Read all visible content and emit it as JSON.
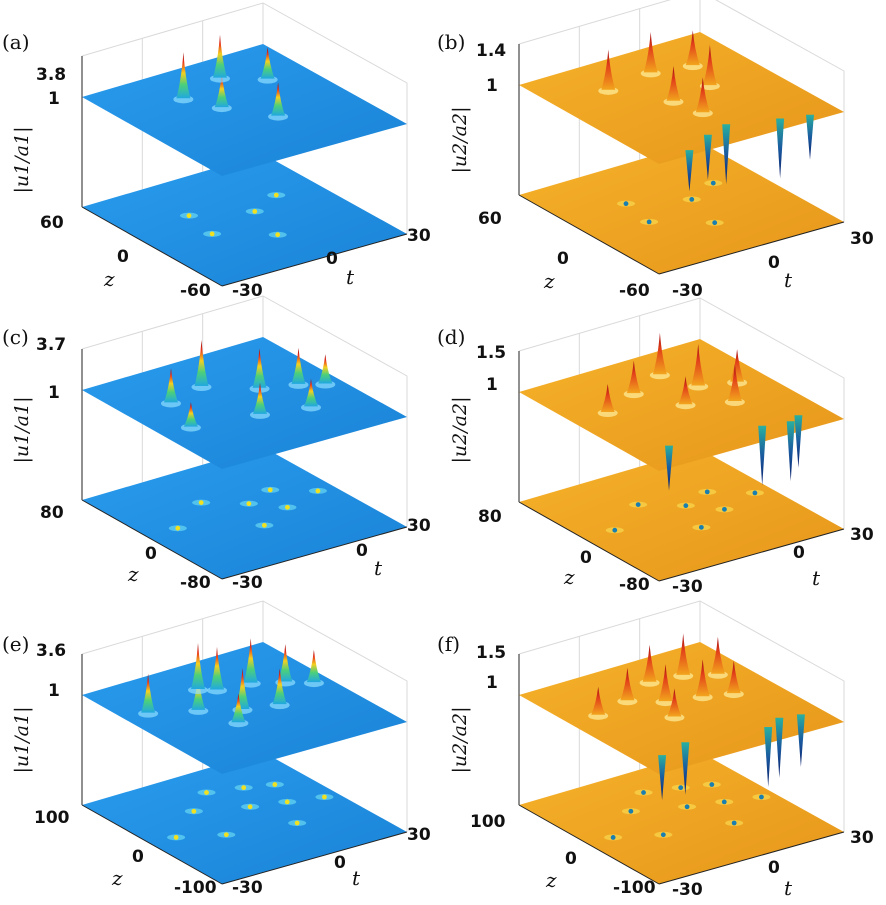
{
  "colors": {
    "blue_plane": "#1e8fe2",
    "blue_plane_dark": "#1a7fd0",
    "orange_plane": "#f2a51c",
    "orange_plane_dark": "#e08f14",
    "peak_red": "#c0141a",
    "dip_navy": "#0b2a7a"
  },
  "chart_data": [
    {
      "panel": "(a)",
      "type": "surface",
      "component": "|u1/a1|",
      "colormap": "jet-blue",
      "z_ticks": [
        "3.8",
        "1"
      ],
      "ylabel": "|u1/a1|",
      "zmax": 3.8,
      "base": 1,
      "y_ticks": [
        "60",
        "0",
        "-60"
      ],
      "x_ticks": [
        "-30",
        "0",
        "30"
      ],
      "ylabel_axis": "z",
      "xlabel": "t",
      "peaks": [
        {
          "t": -8,
          "z": 30,
          "h": 3.8
        },
        {
          "t": -3,
          "z": 10,
          "h": 3.0
        },
        {
          "t": 8,
          "z": 40,
          "h": 3.6
        },
        {
          "t": 18,
          "z": 25,
          "h": 2.9
        },
        {
          "t": 6,
          "z": -15,
          "h": 3.0
        }
      ],
      "dips": [],
      "defects": [
        {
          "t": -10,
          "z": 20
        },
        {
          "t": -12,
          "z": -5
        },
        {
          "t": 6,
          "z": 5
        },
        {
          "t": 17,
          "z": 15
        },
        {
          "t": 2,
          "z": -25
        }
      ]
    },
    {
      "panel": "(b)",
      "type": "surface",
      "component": "|u2/a2|",
      "colormap": "jet-orange",
      "z_ticks": [
        "1.4",
        "1"
      ],
      "ylabel": "|u2/a2|",
      "zmax": 1.4,
      "base": 1,
      "y_ticks": [
        "60",
        "0",
        "-60"
      ],
      "x_ticks": [
        "-30",
        "0",
        "30"
      ],
      "ylabel_axis": "z",
      "xlabel": "t",
      "peaks": [
        {
          "t": -12,
          "z": 30,
          "h": 1.35
        },
        {
          "t": 4,
          "z": 35,
          "h": 1.35
        },
        {
          "t": 16,
          "z": 30,
          "h": 1.3
        },
        {
          "t": -2,
          "z": 0,
          "h": 1.3
        },
        {
          "t": 12,
          "z": 5,
          "h": 1.35
        },
        {
          "t": 0,
          "z": -20,
          "h": 1.3
        }
      ],
      "dips": [
        {
          "t": -18,
          "z": -55,
          "d": 0.55
        },
        {
          "t": -8,
          "z": -45,
          "d": 0.6
        },
        {
          "t": 0,
          "z": -40,
          "d": 0.8
        },
        {
          "t": 14,
          "z": -50,
          "d": 0.8
        },
        {
          "t": 22,
          "z": -55,
          "d": 0.6
        }
      ],
      "defects": [
        {
          "t": -10,
          "z": 20
        },
        {
          "t": -12,
          "z": -5
        },
        {
          "t": 6,
          "z": 5
        },
        {
          "t": 17,
          "z": 15
        },
        {
          "t": 2,
          "z": -25
        }
      ]
    },
    {
      "panel": "(c)",
      "type": "surface",
      "component": "|u1/a1|",
      "colormap": "jet-blue",
      "z_ticks": [
        "3.7",
        "1"
      ],
      "ylabel": "|u1/a1|",
      "zmax": 3.7,
      "base": 1,
      "y_ticks": [
        "80",
        "0",
        "-80"
      ],
      "x_ticks": [
        "-30",
        "0",
        "30"
      ],
      "ylabel_axis": "z",
      "xlabel": "t",
      "peaks": [
        {
          "t": -15,
          "z": 30,
          "h": 3.0
        },
        {
          "t": -20,
          "z": -10,
          "h": 2.4
        },
        {
          "t": -2,
          "z": 40,
          "h": 3.7
        },
        {
          "t": 10,
          "z": 15,
          "h": 3.3
        },
        {
          "t": 20,
          "z": 5,
          "h": 3.1
        },
        {
          "t": 26,
          "z": -5,
          "h": 2.7
        },
        {
          "t": 0,
          "z": -20,
          "h": 2.8
        },
        {
          "t": 14,
          "z": -30,
          "h": 2.6
        }
      ],
      "dips": [],
      "defects": [
        {
          "t": -20,
          "z": 5
        },
        {
          "t": -5,
          "z": 30
        },
        {
          "t": 5,
          "z": 10
        },
        {
          "t": 15,
          "z": 20
        },
        {
          "t": 25,
          "z": 0
        },
        {
          "t": 0,
          "z": -25
        },
        {
          "t": 12,
          "z": -10
        }
      ]
    },
    {
      "panel": "(d)",
      "type": "surface",
      "component": "|u2/a2|",
      "colormap": "jet-orange",
      "z_ticks": [
        "1.5",
        "1"
      ],
      "ylabel": "|u2/a2|",
      "zmax": 1.5,
      "base": 1,
      "y_ticks": [
        "80",
        "0",
        "-80"
      ],
      "x_ticks": [
        "-30",
        "0",
        "30"
      ],
      "ylabel_axis": "z",
      "xlabel": "t",
      "peaks": [
        {
          "t": -18,
          "z": 20,
          "h": 1.3
        },
        {
          "t": -5,
          "z": 35,
          "h": 1.35
        },
        {
          "t": 8,
          "z": 50,
          "h": 1.45
        },
        {
          "t": 12,
          "z": 20,
          "h": 1.45
        },
        {
          "t": 22,
          "z": 10,
          "h": 1.35
        },
        {
          "t": 2,
          "z": 0,
          "h": 1.3
        },
        {
          "t": 14,
          "z": -15,
          "h": 1.4
        }
      ],
      "dips": [
        {
          "t": -18,
          "z": -50,
          "d": 0.6
        },
        {
          "t": 10,
          "z": -60,
          "d": 0.8
        },
        {
          "t": 18,
          "z": -65,
          "d": 0.8
        },
        {
          "t": 22,
          "z": -60,
          "d": 0.7
        }
      ],
      "defects": [
        {
          "t": -20,
          "z": 5
        },
        {
          "t": -5,
          "z": 30
        },
        {
          "t": 5,
          "z": 10
        },
        {
          "t": 15,
          "z": 20
        },
        {
          "t": 25,
          "z": 0
        },
        {
          "t": 0,
          "z": -25
        },
        {
          "t": 12,
          "z": -10
        }
      ]
    },
    {
      "panel": "(e)",
      "type": "surface",
      "component": "|u1/a1|",
      "colormap": "jet-blue",
      "z_ticks": [
        "3.6",
        "1"
      ],
      "ylabel": "|u1/a1|",
      "zmax": 3.6,
      "base": 1,
      "y_ticks": [
        "100",
        "0",
        "-100"
      ],
      "x_ticks": [
        "-30",
        "0",
        "30"
      ],
      "ylabel_axis": "z",
      "xlabel": "t",
      "peaks": [
        {
          "t": -22,
          "z": 40,
          "h": 3.2
        },
        {
          "t": -10,
          "z": 20,
          "h": 3.0
        },
        {
          "t": -2,
          "z": 55,
          "h": 3.6
        },
        {
          "t": 2,
          "z": 45,
          "h": 3.4
        },
        {
          "t": 12,
          "z": 40,
          "h": 3.5
        },
        {
          "t": 20,
          "z": 25,
          "h": 3.1
        },
        {
          "t": 26,
          "z": 10,
          "h": 2.8
        },
        {
          "t": 0,
          "z": 0,
          "h": 3.3
        },
        {
          "t": 10,
          "z": -10,
          "h": 3.0
        },
        {
          "t": -6,
          "z": -20,
          "h": 2.6
        }
      ],
      "dips": [],
      "defects": [
        {
          "t": -22,
          "z": 0
        },
        {
          "t": -8,
          "z": 35
        },
        {
          "t": 2,
          "z": 60
        },
        {
          "t": 12,
          "z": 50
        },
        {
          "t": 20,
          "z": 40
        },
        {
          "t": 6,
          "z": 15
        },
        {
          "t": 16,
          "z": 5
        },
        {
          "t": 26,
          "z": -5
        },
        {
          "t": -10,
          "z": -20
        },
        {
          "t": 10,
          "z": -35
        }
      ]
    },
    {
      "panel": "(f)",
      "type": "surface",
      "component": "|u2/a2|",
      "colormap": "jet-orange",
      "z_ticks": [
        "1.5",
        "1"
      ],
      "ylabel": "|u2/a2|",
      "zmax": 1.5,
      "base": 1,
      "y_ticks": [
        "100",
        "0",
        "-100"
      ],
      "x_ticks": [
        "-30",
        "0",
        "30"
      ],
      "ylabel_axis": "z",
      "xlabel": "t",
      "peaks": [
        {
          "t": -20,
          "z": 30,
          "h": 1.3
        },
        {
          "t": -8,
          "z": 40,
          "h": 1.35
        },
        {
          "t": 4,
          "z": 60,
          "h": 1.4
        },
        {
          "t": 14,
          "z": 55,
          "h": 1.45
        },
        {
          "t": 22,
          "z": 40,
          "h": 1.4
        },
        {
          "t": 0,
          "z": 20,
          "h": 1.4
        },
        {
          "t": 10,
          "z": 10,
          "h": 1.4
        },
        {
          "t": 18,
          "z": 0,
          "h": 1.35
        },
        {
          "t": -4,
          "z": -10,
          "h": 1.3
        }
      ],
      "dips": [
        {
          "t": -22,
          "z": -70,
          "d": 0.6
        },
        {
          "t": -12,
          "z": -60,
          "d": 0.7
        },
        {
          "t": 12,
          "z": -75,
          "d": 0.8
        },
        {
          "t": 18,
          "z": -65,
          "d": 0.8
        },
        {
          "t": 24,
          "z": -70,
          "d": 0.7
        }
      ],
      "defects": [
        {
          "t": -22,
          "z": 0
        },
        {
          "t": -8,
          "z": 35
        },
        {
          "t": 2,
          "z": 60
        },
        {
          "t": 12,
          "z": 50
        },
        {
          "t": 20,
          "z": 40
        },
        {
          "t": 6,
          "z": 15
        },
        {
          "t": 16,
          "z": 5
        },
        {
          "t": 26,
          "z": -5
        },
        {
          "t": -10,
          "z": -20
        },
        {
          "t": 10,
          "z": -35
        }
      ]
    }
  ]
}
